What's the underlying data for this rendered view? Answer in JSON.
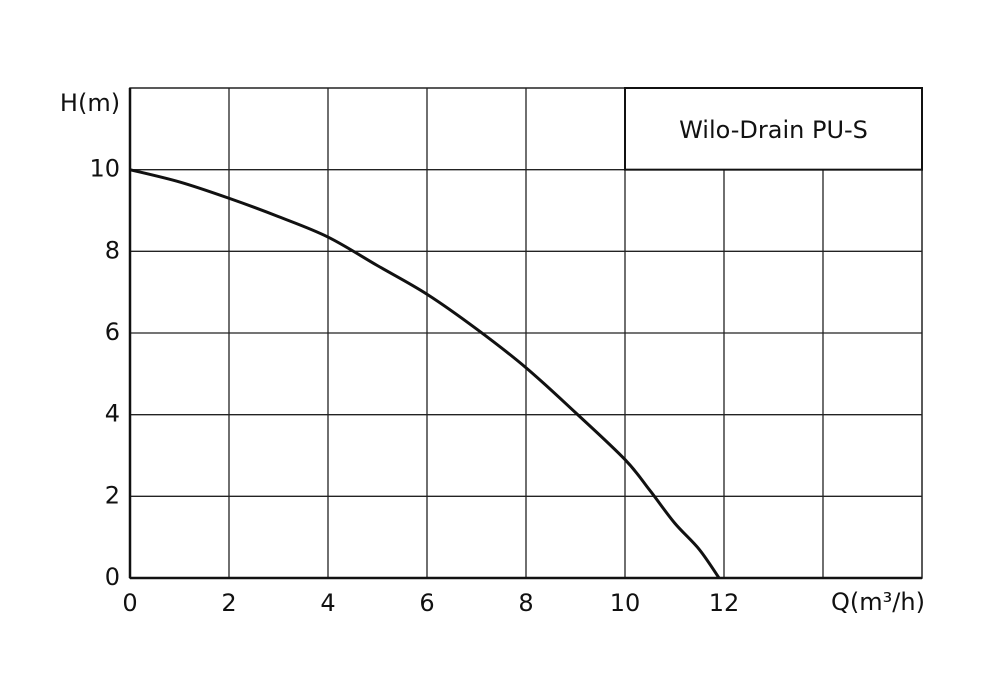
{
  "chart_data": {
    "type": "line",
    "x_label": "Q(m³/h)",
    "y_label": "H(m)",
    "x": [
      0,
      1,
      2,
      3,
      4,
      5,
      6,
      7,
      8,
      9,
      10,
      10.5,
      11,
      11.5,
      11.9
    ],
    "series": [
      {
        "name": "Wilo-Drain PU-S",
        "color": "#111111",
        "values": [
          10,
          9.7,
          9.3,
          8.85,
          8.35,
          7.65,
          6.95,
          6.1,
          5.15,
          4.05,
          2.9,
          2.15,
          1.35,
          0.7,
          0
        ]
      }
    ],
    "xlim": [
      0,
      16
    ],
    "ylim": [
      0,
      12
    ],
    "xticks": [
      0,
      2,
      4,
      6,
      8,
      10,
      12,
      {
        "value": 14,
        "label": null
      }
    ],
    "yticks": [
      0,
      2,
      4,
      6,
      8,
      10
    ],
    "grid": true,
    "legend": "top-right"
  }
}
